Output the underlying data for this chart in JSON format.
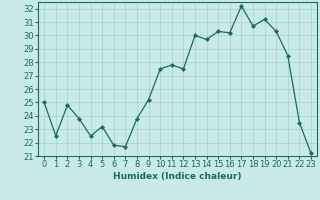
{
  "x": [
    0,
    1,
    2,
    3,
    4,
    5,
    6,
    7,
    8,
    9,
    10,
    11,
    12,
    13,
    14,
    15,
    16,
    17,
    18,
    19,
    20,
    21,
    22,
    23
  ],
  "y": [
    25.0,
    22.5,
    24.8,
    23.8,
    22.5,
    23.2,
    21.8,
    21.7,
    23.8,
    25.2,
    27.5,
    27.8,
    27.5,
    30.0,
    29.7,
    30.3,
    30.2,
    32.2,
    30.7,
    31.2,
    30.3,
    28.5,
    23.5,
    21.2
  ],
  "xlabel": "Humidex (Indice chaleur)",
  "ylim": [
    21,
    32.5
  ],
  "xlim": [
    -0.5,
    23.5
  ],
  "yticks": [
    21,
    22,
    23,
    24,
    25,
    26,
    27,
    28,
    29,
    30,
    31,
    32
  ],
  "xticks": [
    0,
    1,
    2,
    3,
    4,
    5,
    6,
    7,
    8,
    9,
    10,
    11,
    12,
    13,
    14,
    15,
    16,
    17,
    18,
    19,
    20,
    21,
    22,
    23
  ],
  "line_color": "#1a6b5a",
  "marker": "D",
  "marker_size": 2.0,
  "bg_color": "#c8eae8",
  "grid_color": "#a8d0cc",
  "xlabel_fontsize": 6.5,
  "tick_fontsize": 6
}
